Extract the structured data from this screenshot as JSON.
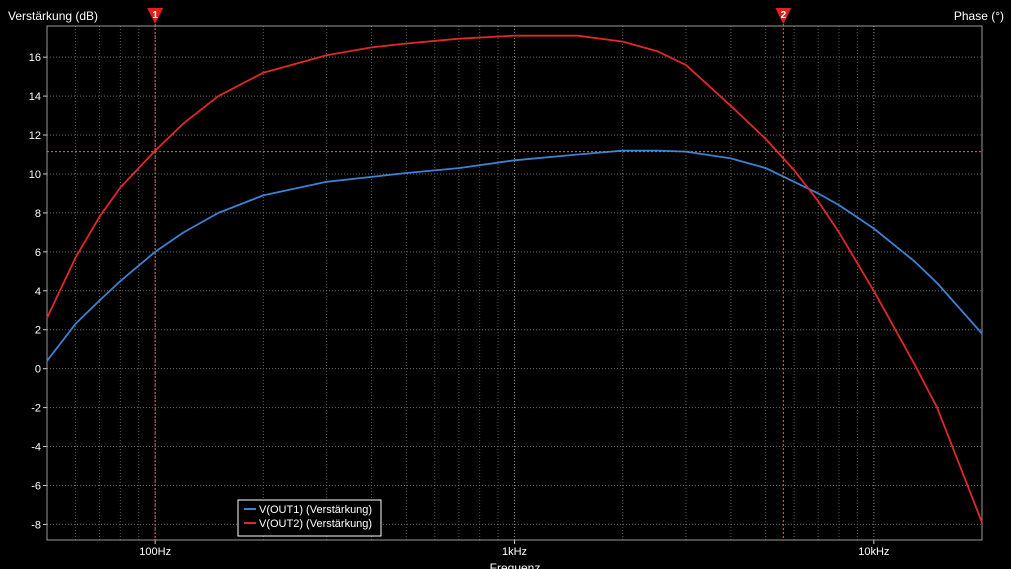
{
  "chart_data": {
    "type": "line",
    "ylabel": "Verstärkung (dB)",
    "ylabel_right": "Phase (°)",
    "xlabel": "Frequenz",
    "xscale": "log",
    "xlim": [
      50,
      20000
    ],
    "ylim": [
      -8.8,
      17.6
    ],
    "grid": true,
    "x_ticks": [
      {
        "value": 100,
        "label": "100Hz"
      },
      {
        "value": 1000,
        "label": "1kHz"
      },
      {
        "value": 10000,
        "label": "10kHz"
      }
    ],
    "y_ticks": [
      {
        "value": 16,
        "label": "16"
      },
      {
        "value": 14,
        "label": "14"
      },
      {
        "value": 12,
        "label": "12"
      },
      {
        "value": 10,
        "label": "10"
      },
      {
        "value": 8,
        "label": "8"
      },
      {
        "value": 6,
        "label": "6"
      },
      {
        "value": 4,
        "label": "4"
      },
      {
        "value": 2,
        "label": "2"
      },
      {
        "value": 0,
        "label": "0"
      },
      {
        "value": -2,
        "label": "-2"
      },
      {
        "value": -4,
        "label": "-4"
      },
      {
        "value": -6,
        "label": "-6"
      },
      {
        "value": -8,
        "label": "-8"
      }
    ],
    "series": [
      {
        "name": "V(OUT1) (Verstärkung)",
        "color": "#3c82d2",
        "x": [
          50,
          60,
          70,
          80,
          100,
          120,
          150,
          200,
          300,
          400,
          500,
          700,
          1000,
          1500,
          2000,
          2500,
          3000,
          4000,
          5000,
          6000,
          7000,
          8000,
          10000,
          13000,
          15000,
          20000
        ],
        "y": [
          0.4,
          2.3,
          3.5,
          4.5,
          6.0,
          7.0,
          8.0,
          8.9,
          9.6,
          9.85,
          10.05,
          10.3,
          10.7,
          11.0,
          11.2,
          11.2,
          11.15,
          10.8,
          10.3,
          9.6,
          9.0,
          8.4,
          7.2,
          5.5,
          4.4,
          1.8
        ]
      },
      {
        "name": "V(OUT2) (Verstärkung)",
        "color": "#e02828",
        "x": [
          50,
          60,
          70,
          80,
          100,
          120,
          150,
          200,
          300,
          400,
          500,
          700,
          1000,
          1500,
          2000,
          2500,
          3000,
          4000,
          5000,
          6000,
          7000,
          8000,
          10000,
          13000,
          15000,
          20000
        ],
        "y": [
          2.6,
          5.7,
          7.8,
          9.3,
          11.2,
          12.6,
          14.0,
          15.2,
          16.1,
          16.5,
          16.7,
          16.95,
          17.1,
          17.1,
          16.8,
          16.3,
          15.6,
          13.5,
          11.8,
          10.2,
          8.6,
          7.0,
          4.0,
          0.2,
          -2.0,
          -7.9
        ]
      }
    ],
    "cursors": [
      {
        "label": "1",
        "x": 100
      },
      {
        "label": "2",
        "x": 5600
      }
    ],
    "cursor_level": 11.15,
    "legend_position": "bottom-left"
  }
}
